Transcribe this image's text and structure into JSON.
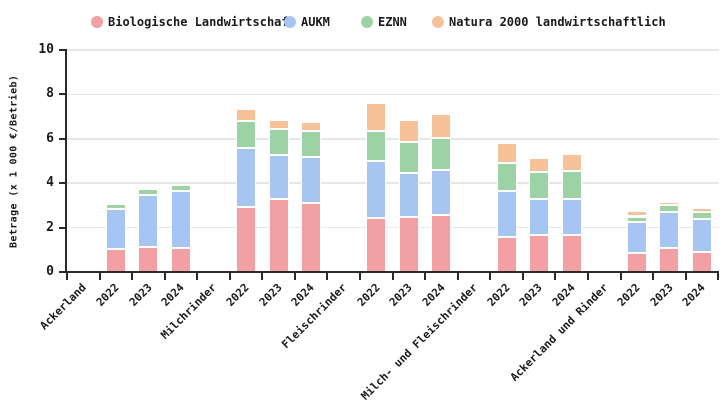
{
  "chart_data": {
    "type": "bar",
    "stacked": true,
    "title": "",
    "ylabel": "Betrage (x 1 000 €/Betrieb)",
    "xlabel": "",
    "ylim": [
      0,
      10
    ],
    "yticks": [
      0,
      2,
      4,
      6,
      8,
      10
    ],
    "grid": "horizontal",
    "legend_position": "top",
    "series": [
      {
        "id": "biologische-landwirtschaft",
        "name": "Biologische Landwirtschaf",
        "color": "#f2a0a4"
      },
      {
        "id": "aukm",
        "name": "AUKM",
        "color": "#a6c6f1"
      },
      {
        "id": "eznn",
        "name": "EZNN",
        "color": "#9dd3a4"
      },
      {
        "id": "natura-2000",
        "name": "Natura 2000 landwirtschaftlich",
        "color": "#f6c29a"
      }
    ],
    "x_slots": [
      {
        "label": "Ackerland",
        "values": null
      },
      {
        "label": "2022",
        "values": [
          1.05,
          1.8,
          0.22,
          0
        ]
      },
      {
        "label": "2023",
        "values": [
          1.12,
          2.35,
          0.27,
          0.1
        ]
      },
      {
        "label": "2024",
        "values": [
          1.08,
          2.57,
          0.28,
          0
        ]
      },
      {
        "label": "Milchrinder",
        "values": null
      },
      {
        "label": "2022",
        "values": [
          2.93,
          2.67,
          1.2,
          0.53
        ]
      },
      {
        "label": "2023",
        "values": [
          3.3,
          1.97,
          1.16,
          0.42
        ]
      },
      {
        "label": "2024",
        "values": [
          3.12,
          2.06,
          1.17,
          0.4
        ]
      },
      {
        "label": "Fleischrinder",
        "values": null
      },
      {
        "label": "2022",
        "values": [
          2.45,
          2.55,
          1.35,
          1.25
        ]
      },
      {
        "label": "2023",
        "values": [
          2.49,
          1.96,
          1.4,
          1.0
        ]
      },
      {
        "label": "2024",
        "values": [
          2.55,
          2.04,
          1.46,
          1.07
        ]
      },
      {
        "label": "Milch- und Fleischrinder",
        "values": null
      },
      {
        "label": "2022",
        "values": [
          1.59,
          2.06,
          1.25,
          0.9
        ]
      },
      {
        "label": "2023",
        "values": [
          1.65,
          1.62,
          1.23,
          0.62
        ]
      },
      {
        "label": "2024",
        "values": [
          1.65,
          1.65,
          1.25,
          0.75
        ]
      },
      {
        "label": "Ackerland und Rinder",
        "values": null
      },
      {
        "label": "2022",
        "values": [
          0.87,
          1.38,
          0.25,
          0.25
        ]
      },
      {
        "label": "2023",
        "values": [
          1.09,
          1.63,
          0.3,
          0.15
        ]
      },
      {
        "label": "2024",
        "values": [
          0.91,
          1.46,
          0.35,
          0.15
        ]
      }
    ]
  }
}
